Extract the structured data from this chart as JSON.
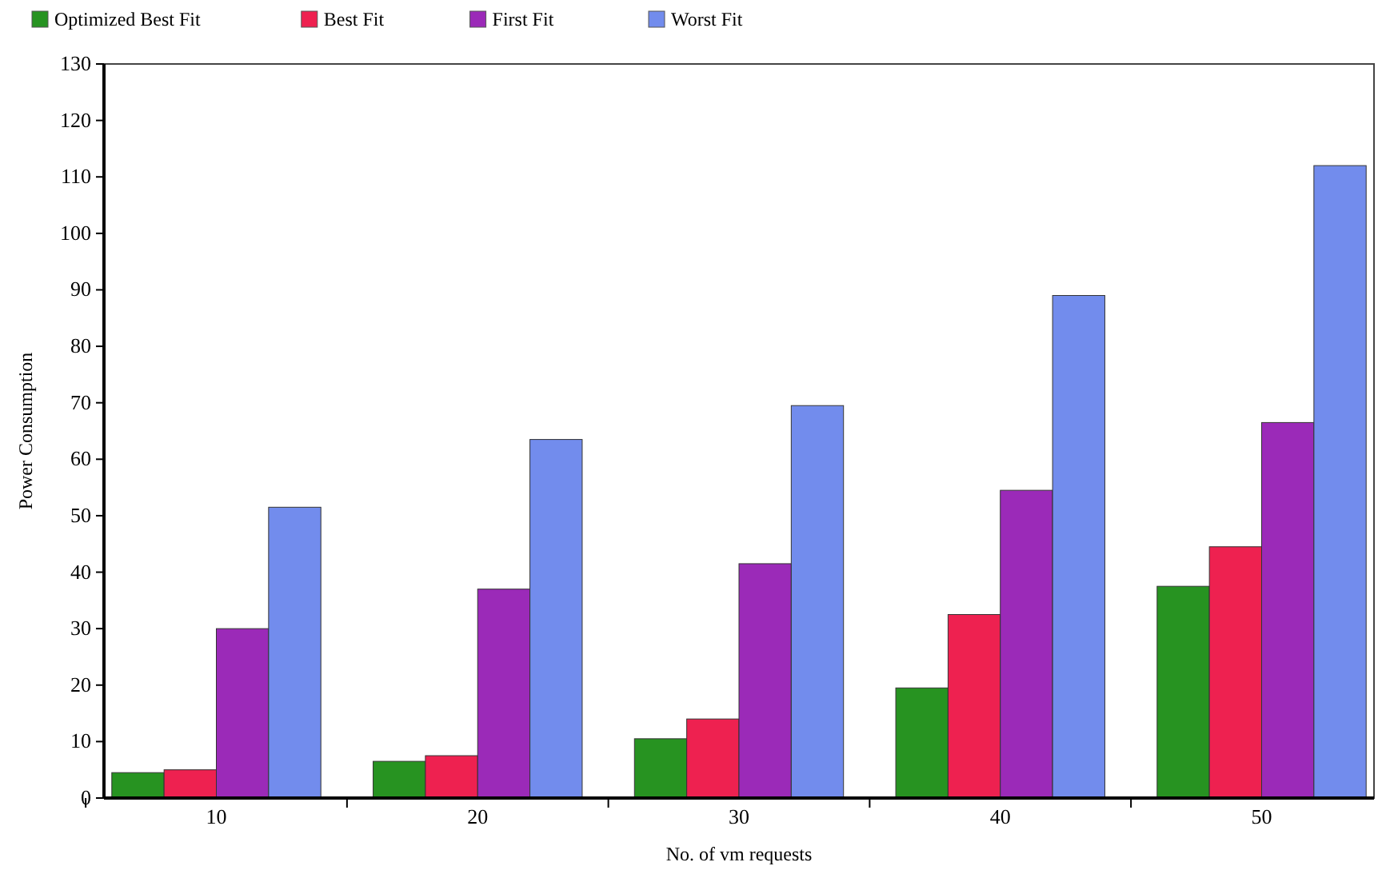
{
  "chart_data": {
    "type": "bar",
    "xlabel": "No. of vm requests",
    "ylabel": "Power Consumption",
    "categories": [
      "10",
      "20",
      "30",
      "40",
      "50"
    ],
    "series": [
      {
        "name": "Optimized Best Fit",
        "color": "#279321",
        "values": [
          4.5,
          6.5,
          10.5,
          19.5,
          37.5
        ]
      },
      {
        "name": "Best Fit",
        "color": "#ee2150",
        "values": [
          5,
          7.5,
          14,
          32.5,
          44.5
        ]
      },
      {
        "name": "First Fit",
        "color": "#9b2ab8",
        "values": [
          30,
          37,
          41.5,
          54.5,
          66.5
        ]
      },
      {
        "name": "Worst Fit",
        "color": "#728ced",
        "values": [
          51.5,
          63.5,
          69.5,
          89,
          112
        ]
      }
    ],
    "ylim": [
      0,
      130
    ],
    "yticks": [
      0,
      10,
      20,
      30,
      40,
      50,
      60,
      70,
      80,
      90,
      100,
      110,
      120,
      130
    ],
    "grid": false,
    "legend": "top left"
  }
}
